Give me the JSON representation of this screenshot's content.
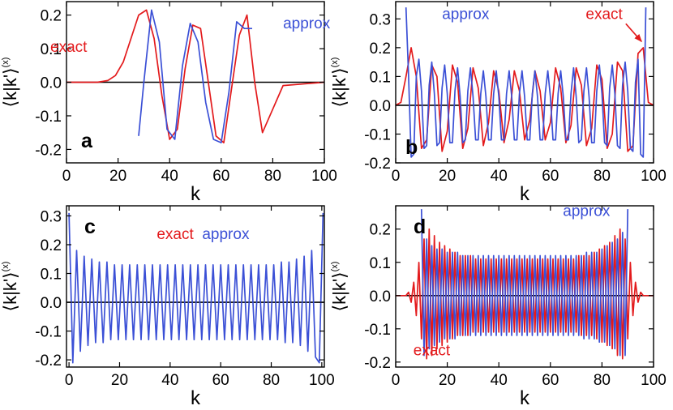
{
  "colors": {
    "exact": "#e31a1c",
    "approx": "#3b50d6",
    "zero_line": "#000000",
    "frame": "#000000"
  },
  "chart_data": [
    {
      "type": "line",
      "panel_label": "a",
      "xlabel": "k",
      "ylabel": "⟨k|k'⟩",
      "ylabel_superscript": "(x)",
      "xlim": [
        0,
        100
      ],
      "ylim": [
        -0.24,
        0.24
      ],
      "x_ticks": [
        0,
        20,
        40,
        60,
        80,
        100
      ],
      "y_ticks": [
        -0.2,
        -0.1,
        0.0,
        0.1,
        0.2
      ],
      "y_tick_labels": [
        "-0.2",
        "-0.1",
        "0.0",
        "0.1",
        "0.2"
      ],
      "annotations": [
        {
          "text": "exact",
          "series": "exact",
          "x": 8,
          "y": 0.09
        },
        {
          "text": "approx",
          "series": "approx",
          "x": 84,
          "y": 0.16
        }
      ],
      "series": [
        {
          "name": "exact",
          "x": [
            0,
            12,
            16,
            19,
            22,
            25,
            28,
            31,
            34,
            37,
            40,
            43,
            46,
            49,
            52,
            55,
            58,
            61,
            64,
            67,
            70,
            73,
            76,
            80,
            84,
            100
          ],
          "y": [
            0,
            0,
            0.005,
            0.02,
            0.06,
            0.13,
            0.2,
            0.215,
            0.13,
            -0.04,
            -0.17,
            -0.14,
            0.04,
            0.17,
            0.16,
            0.0,
            -0.16,
            -0.18,
            -0.02,
            0.14,
            0.2,
            0.0,
            -0.15,
            -0.08,
            -0.01,
            0
          ]
        },
        {
          "name": "approx",
          "x": [
            28,
            30,
            33,
            36,
            39,
            42,
            45,
            48,
            51,
            54,
            57,
            60,
            63,
            66,
            69,
            72
          ],
          "y": [
            -0.16,
            0.0,
            0.215,
            0.12,
            -0.14,
            -0.17,
            0.05,
            0.175,
            0.12,
            -0.06,
            -0.17,
            -0.18,
            -0.03,
            0.18,
            0.16,
            0.16
          ]
        }
      ]
    },
    {
      "type": "line",
      "panel_label": "b",
      "xlabel": "k",
      "ylabel": "⟨k|k'⟩",
      "ylabel_superscript": "(x)",
      "xlim": [
        0,
        100
      ],
      "ylim": [
        -0.2,
        0.36
      ],
      "x_ticks": [
        0,
        20,
        40,
        60,
        80,
        100
      ],
      "y_ticks": [
        -0.2,
        -0.1,
        0.0,
        0.1,
        0.2,
        0.3
      ],
      "y_tick_labels": [
        "-0.2",
        "-0.1",
        "0.0",
        "0.1",
        "0.2",
        "0.3"
      ],
      "annotations": [
        {
          "text": "approx",
          "series": "approx",
          "x": 18,
          "y": 0.3
        },
        {
          "text": "exact",
          "series": "exact",
          "x": 88,
          "y": 0.3,
          "arrow_to": [
            96,
            0.21
          ]
        }
      ],
      "series": [
        {
          "name": "exact",
          "x": [
            0,
            2,
            4,
            6,
            8,
            10,
            12,
            14,
            16,
            18,
            20,
            22,
            24,
            26,
            28,
            30,
            32,
            34,
            36,
            38,
            40,
            42,
            44,
            46,
            48,
            50,
            52,
            54,
            56,
            58,
            60,
            62,
            64,
            66,
            68,
            70,
            72,
            74,
            76,
            78,
            80,
            82,
            84,
            86,
            88,
            90,
            92,
            94,
            96,
            98,
            100
          ],
          "y": [
            0,
            0.01,
            0.1,
            0.2,
            0.1,
            -0.15,
            -0.12,
            0.14,
            0.1,
            -0.16,
            -0.09,
            0.14,
            0.08,
            -0.15,
            -0.08,
            0.13,
            0.06,
            -0.14,
            -0.06,
            0.12,
            0.05,
            -0.13,
            -0.05,
            0.12,
            0.05,
            -0.12,
            -0.05,
            0.12,
            0.05,
            -0.12,
            -0.06,
            0.13,
            0.06,
            -0.13,
            -0.07,
            0.13,
            0.07,
            -0.14,
            -0.08,
            0.14,
            0.09,
            -0.15,
            -0.1,
            0.15,
            0.12,
            -0.16,
            -0.14,
            0.18,
            0.2,
            0.01,
            0
          ]
        },
        {
          "name": "approx",
          "x": [
            4,
            5,
            6,
            7,
            8,
            9,
            10,
            11,
            12,
            13,
            14,
            15,
            16,
            17,
            18,
            19,
            20,
            21,
            22,
            23,
            24,
            25,
            26,
            27,
            28,
            29,
            30,
            31,
            32,
            33,
            34,
            35,
            36,
            37,
            38,
            39,
            40,
            41,
            42,
            43,
            44,
            45,
            46,
            47,
            48,
            49,
            50,
            51,
            52,
            53,
            54,
            55,
            56,
            57,
            58,
            59,
            60,
            61,
            62,
            63,
            64,
            65,
            66,
            67,
            68,
            69,
            70,
            71,
            72,
            73,
            74,
            75,
            76,
            77,
            78,
            79,
            80,
            81,
            82,
            83,
            84,
            85,
            86,
            87,
            88,
            89,
            90,
            91,
            92,
            93,
            94,
            95,
            96,
            97
          ],
          "y": [
            0.34,
            0.1,
            -0.18,
            -0.17,
            0.1,
            0.16,
            0.05,
            -0.15,
            -0.14,
            0.07,
            0.15,
            0.04,
            -0.14,
            -0.13,
            0.06,
            0.14,
            0.04,
            -0.13,
            -0.13,
            0.05,
            0.13,
            0.03,
            -0.13,
            -0.12,
            0.05,
            0.13,
            0.03,
            -0.12,
            -0.12,
            0.04,
            0.12,
            0.03,
            -0.12,
            -0.12,
            0.04,
            0.12,
            0.03,
            -0.12,
            -0.12,
            0.04,
            0.12,
            0.03,
            -0.12,
            -0.12,
            0.04,
            0.12,
            0.03,
            -0.12,
            -0.12,
            0.04,
            0.12,
            0.03,
            -0.12,
            -0.12,
            0.04,
            0.12,
            0.03,
            -0.12,
            -0.12,
            0.04,
            0.12,
            0.03,
            -0.12,
            -0.12,
            0.04,
            0.13,
            0.03,
            -0.13,
            -0.12,
            0.05,
            0.13,
            0.03,
            -0.13,
            -0.13,
            0.05,
            0.14,
            0.04,
            -0.13,
            -0.14,
            0.06,
            0.14,
            0.04,
            -0.14,
            -0.15,
            0.07,
            0.15,
            0.05,
            -0.15,
            -0.16,
            0.08,
            0.16,
            -0.17,
            -0.18,
            0.34
          ]
        }
      ]
    },
    {
      "type": "line",
      "panel_label": "c",
      "xlabel": "k",
      "ylabel": "⟨k|k'⟩",
      "ylabel_superscript": "(x)",
      "xlim": [
        -1,
        101
      ],
      "ylim": [
        -0.225,
        0.335
      ],
      "x_ticks": [
        0,
        20,
        40,
        60,
        80,
        100
      ],
      "y_ticks": [
        -0.2,
        -0.1,
        0.0,
        0.1,
        0.2,
        0.3
      ],
      "y_tick_labels": [
        "-0.2",
        "-0.1",
        "0.0",
        "0.1",
        "0.2",
        "0.3"
      ],
      "annotations": [
        {
          "text": "exact",
          "series": "exact",
          "x": 42,
          "y": 0.22
        },
        {
          "text": "approx",
          "series": "approx",
          "x": 62,
          "y": 0.22
        }
      ],
      "series": [
        {
          "name": "approx",
          "x": [
            0,
            1.5,
            3,
            4.5,
            6,
            7.5,
            9,
            10.5,
            12,
            13.5,
            15,
            16.5,
            18,
            19.5,
            21,
            22.5,
            24,
            25.5,
            27,
            28.5,
            30,
            31.5,
            33,
            34.5,
            36,
            37.5,
            39,
            40.5,
            42,
            43.5,
            45,
            46.5,
            48,
            49.5,
            51,
            52.5,
            54,
            55.5,
            57,
            58.5,
            60,
            61.5,
            63,
            64.5,
            66,
            67.5,
            69,
            70.5,
            72,
            73.5,
            75,
            76.5,
            78,
            79.5,
            81,
            82.5,
            84,
            85.5,
            87,
            88.5,
            90,
            91.5,
            93,
            94.5,
            96,
            97.5,
            99,
            100.5
          ],
          "y": [
            0.31,
            -0.21,
            0.18,
            -0.17,
            0.16,
            -0.15,
            0.15,
            -0.14,
            0.14,
            -0.14,
            0.14,
            -0.13,
            0.13,
            -0.13,
            0.13,
            -0.13,
            0.13,
            -0.13,
            0.13,
            -0.13,
            0.13,
            -0.13,
            0.13,
            -0.13,
            0.13,
            -0.13,
            0.13,
            -0.13,
            0.13,
            -0.13,
            0.13,
            -0.13,
            0.13,
            -0.13,
            0.13,
            -0.13,
            0.13,
            -0.13,
            0.13,
            -0.13,
            0.13,
            -0.13,
            0.13,
            -0.13,
            0.13,
            -0.13,
            0.13,
            -0.13,
            0.13,
            -0.13,
            0.13,
            -0.13,
            0.13,
            -0.13,
            0.13,
            -0.13,
            0.14,
            -0.14,
            0.14,
            -0.14,
            0.15,
            -0.15,
            0.16,
            -0.17,
            0.18,
            -0.19,
            -0.21,
            0.31
          ]
        }
      ]
    },
    {
      "type": "line",
      "panel_label": "d",
      "xlabel": "k",
      "ylabel": "⟨k|k'⟩",
      "ylabel_superscript": "(x)",
      "xlim": [
        0,
        100
      ],
      "ylim": [
        -0.215,
        0.27
      ],
      "x_ticks": [
        0,
        20,
        40,
        60,
        80,
        100
      ],
      "y_ticks": [
        -0.2,
        -0.1,
        0.0,
        0.1,
        0.2
      ],
      "y_tick_labels": [
        "-0.2",
        "-0.1",
        "0.0",
        "0.1",
        "0.2"
      ],
      "annotations": [
        {
          "text": "approx",
          "series": "approx",
          "x": 74,
          "y": 0.24
        },
        {
          "text": "exact",
          "series": "exact",
          "x": 14,
          "y": -0.18
        }
      ],
      "series": [
        {
          "name": "exact",
          "x": [
            0,
            4,
            5,
            6,
            7,
            8,
            9,
            10,
            11,
            12,
            13,
            14,
            15,
            16,
            17,
            18,
            19,
            20,
            21,
            22,
            23,
            24,
            25,
            26,
            27,
            28,
            29,
            30,
            31,
            32,
            33,
            34,
            35,
            36,
            37,
            38,
            39,
            40,
            41,
            42,
            43,
            44,
            45,
            46,
            47,
            48,
            49,
            50,
            51,
            52,
            53,
            54,
            55,
            56,
            57,
            58,
            59,
            60,
            61,
            62,
            63,
            64,
            65,
            66,
            67,
            68,
            69,
            70,
            71,
            72,
            73,
            74,
            75,
            76,
            77,
            78,
            79,
            80,
            81,
            82,
            83,
            84,
            85,
            86,
            87,
            88,
            89,
            90,
            91,
            92,
            93,
            94,
            95,
            96,
            100
          ],
          "y": [
            0,
            0,
            0.01,
            -0.02,
            0.04,
            -0.06,
            0.1,
            -0.13,
            0.17,
            -0.19,
            0.2,
            -0.18,
            0.18,
            -0.16,
            0.16,
            -0.15,
            0.15,
            -0.14,
            0.14,
            -0.13,
            0.13,
            -0.12,
            0.12,
            -0.12,
            0.12,
            -0.12,
            0.12,
            -0.11,
            0.11,
            -0.11,
            0.11,
            -0.11,
            0.11,
            -0.11,
            0.11,
            -0.11,
            0.11,
            -0.11,
            0.11,
            -0.11,
            0.11,
            -0.11,
            0.11,
            -0.11,
            0.11,
            -0.11,
            0.11,
            -0.11,
            0.11,
            -0.11,
            0.11,
            -0.11,
            0.11,
            -0.11,
            0.11,
            -0.11,
            0.11,
            -0.11,
            0.11,
            -0.11,
            0.11,
            -0.11,
            0.11,
            -0.11,
            0.11,
            -0.11,
            0.11,
            -0.11,
            0.12,
            -0.12,
            0.12,
            -0.12,
            0.12,
            -0.12,
            0.13,
            -0.13,
            0.14,
            -0.14,
            0.15,
            -0.15,
            0.16,
            -0.16,
            0.18,
            -0.18,
            0.2,
            -0.19,
            0.17,
            -0.13,
            0.1,
            -0.06,
            0.04,
            -0.02,
            0.01,
            0,
            0
          ]
        },
        {
          "name": "approx",
          "x": [
            10,
            11,
            12,
            13,
            14,
            15,
            16,
            17,
            18,
            19,
            20,
            21,
            22,
            23,
            24,
            25,
            26,
            27,
            28,
            29,
            30,
            31,
            32,
            33,
            34,
            35,
            36,
            37,
            38,
            39,
            40,
            41,
            42,
            43,
            44,
            45,
            46,
            47,
            48,
            49,
            50,
            51,
            52,
            53,
            54,
            55,
            56,
            57,
            58,
            59,
            60,
            61,
            62,
            63,
            64,
            65,
            66,
            67,
            68,
            69,
            70,
            71,
            72,
            73,
            74,
            75,
            76,
            77,
            78,
            79,
            80,
            81,
            82,
            83,
            84,
            85,
            86,
            87,
            88,
            89,
            90
          ],
          "y": [
            0.26,
            -0.18,
            0.17,
            -0.16,
            0.15,
            -0.15,
            0.14,
            -0.14,
            0.14,
            -0.13,
            0.13,
            -0.13,
            0.13,
            -0.13,
            0.13,
            -0.12,
            0.12,
            -0.12,
            0.12,
            -0.12,
            0.12,
            -0.12,
            0.12,
            -0.12,
            0.12,
            -0.12,
            0.12,
            -0.12,
            0.12,
            -0.12,
            0.12,
            -0.12,
            0.12,
            -0.12,
            0.12,
            -0.12,
            0.12,
            -0.12,
            0.12,
            -0.12,
            0.12,
            -0.12,
            0.12,
            -0.12,
            0.12,
            -0.12,
            0.12,
            -0.12,
            0.12,
            -0.12,
            0.12,
            -0.12,
            0.12,
            -0.12,
            0.12,
            -0.12,
            0.12,
            -0.12,
            0.12,
            -0.12,
            0.12,
            -0.12,
            0.12,
            -0.13,
            0.13,
            -0.13,
            0.13,
            -0.13,
            0.13,
            -0.14,
            0.14,
            -0.14,
            0.15,
            -0.15,
            0.16,
            -0.16,
            0.17,
            -0.18,
            0.19,
            -0.18,
            0.26
          ]
        }
      ]
    }
  ]
}
